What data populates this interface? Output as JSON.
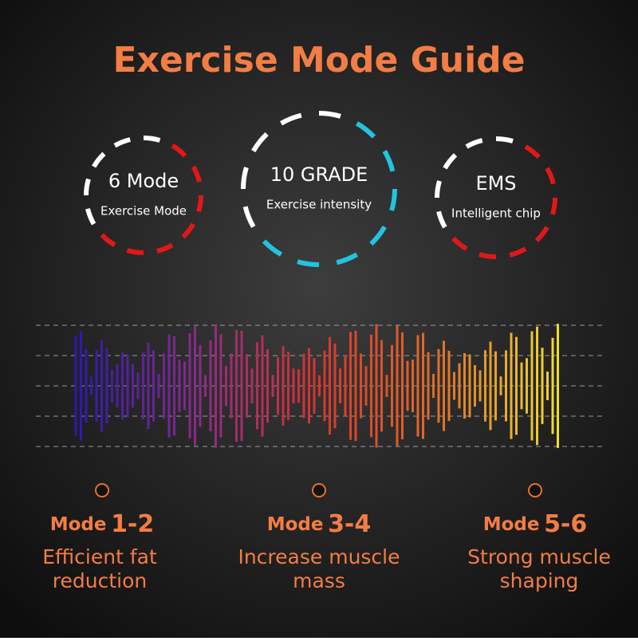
{
  "title": "Exercise Mode Guide",
  "badges": [
    {
      "main": "6 Mode",
      "sub": "Exercise Mode"
    },
    {
      "main": "10 GRADE",
      "sub": "Exercise intensity"
    },
    {
      "main": "EMS",
      "sub": "Intelligent chip"
    }
  ],
  "modes": [
    {
      "prefix": "Mode",
      "number": "1-2",
      "lines": [
        "Efficient fat",
        "reduction"
      ]
    },
    {
      "prefix": "Mode",
      "number": "3-4",
      "lines": [
        "Increase muscle",
        "mass"
      ]
    },
    {
      "prefix": "Mode",
      "number": "5-6",
      "lines": [
        "Strong muscle",
        "shaping"
      ]
    }
  ]
}
